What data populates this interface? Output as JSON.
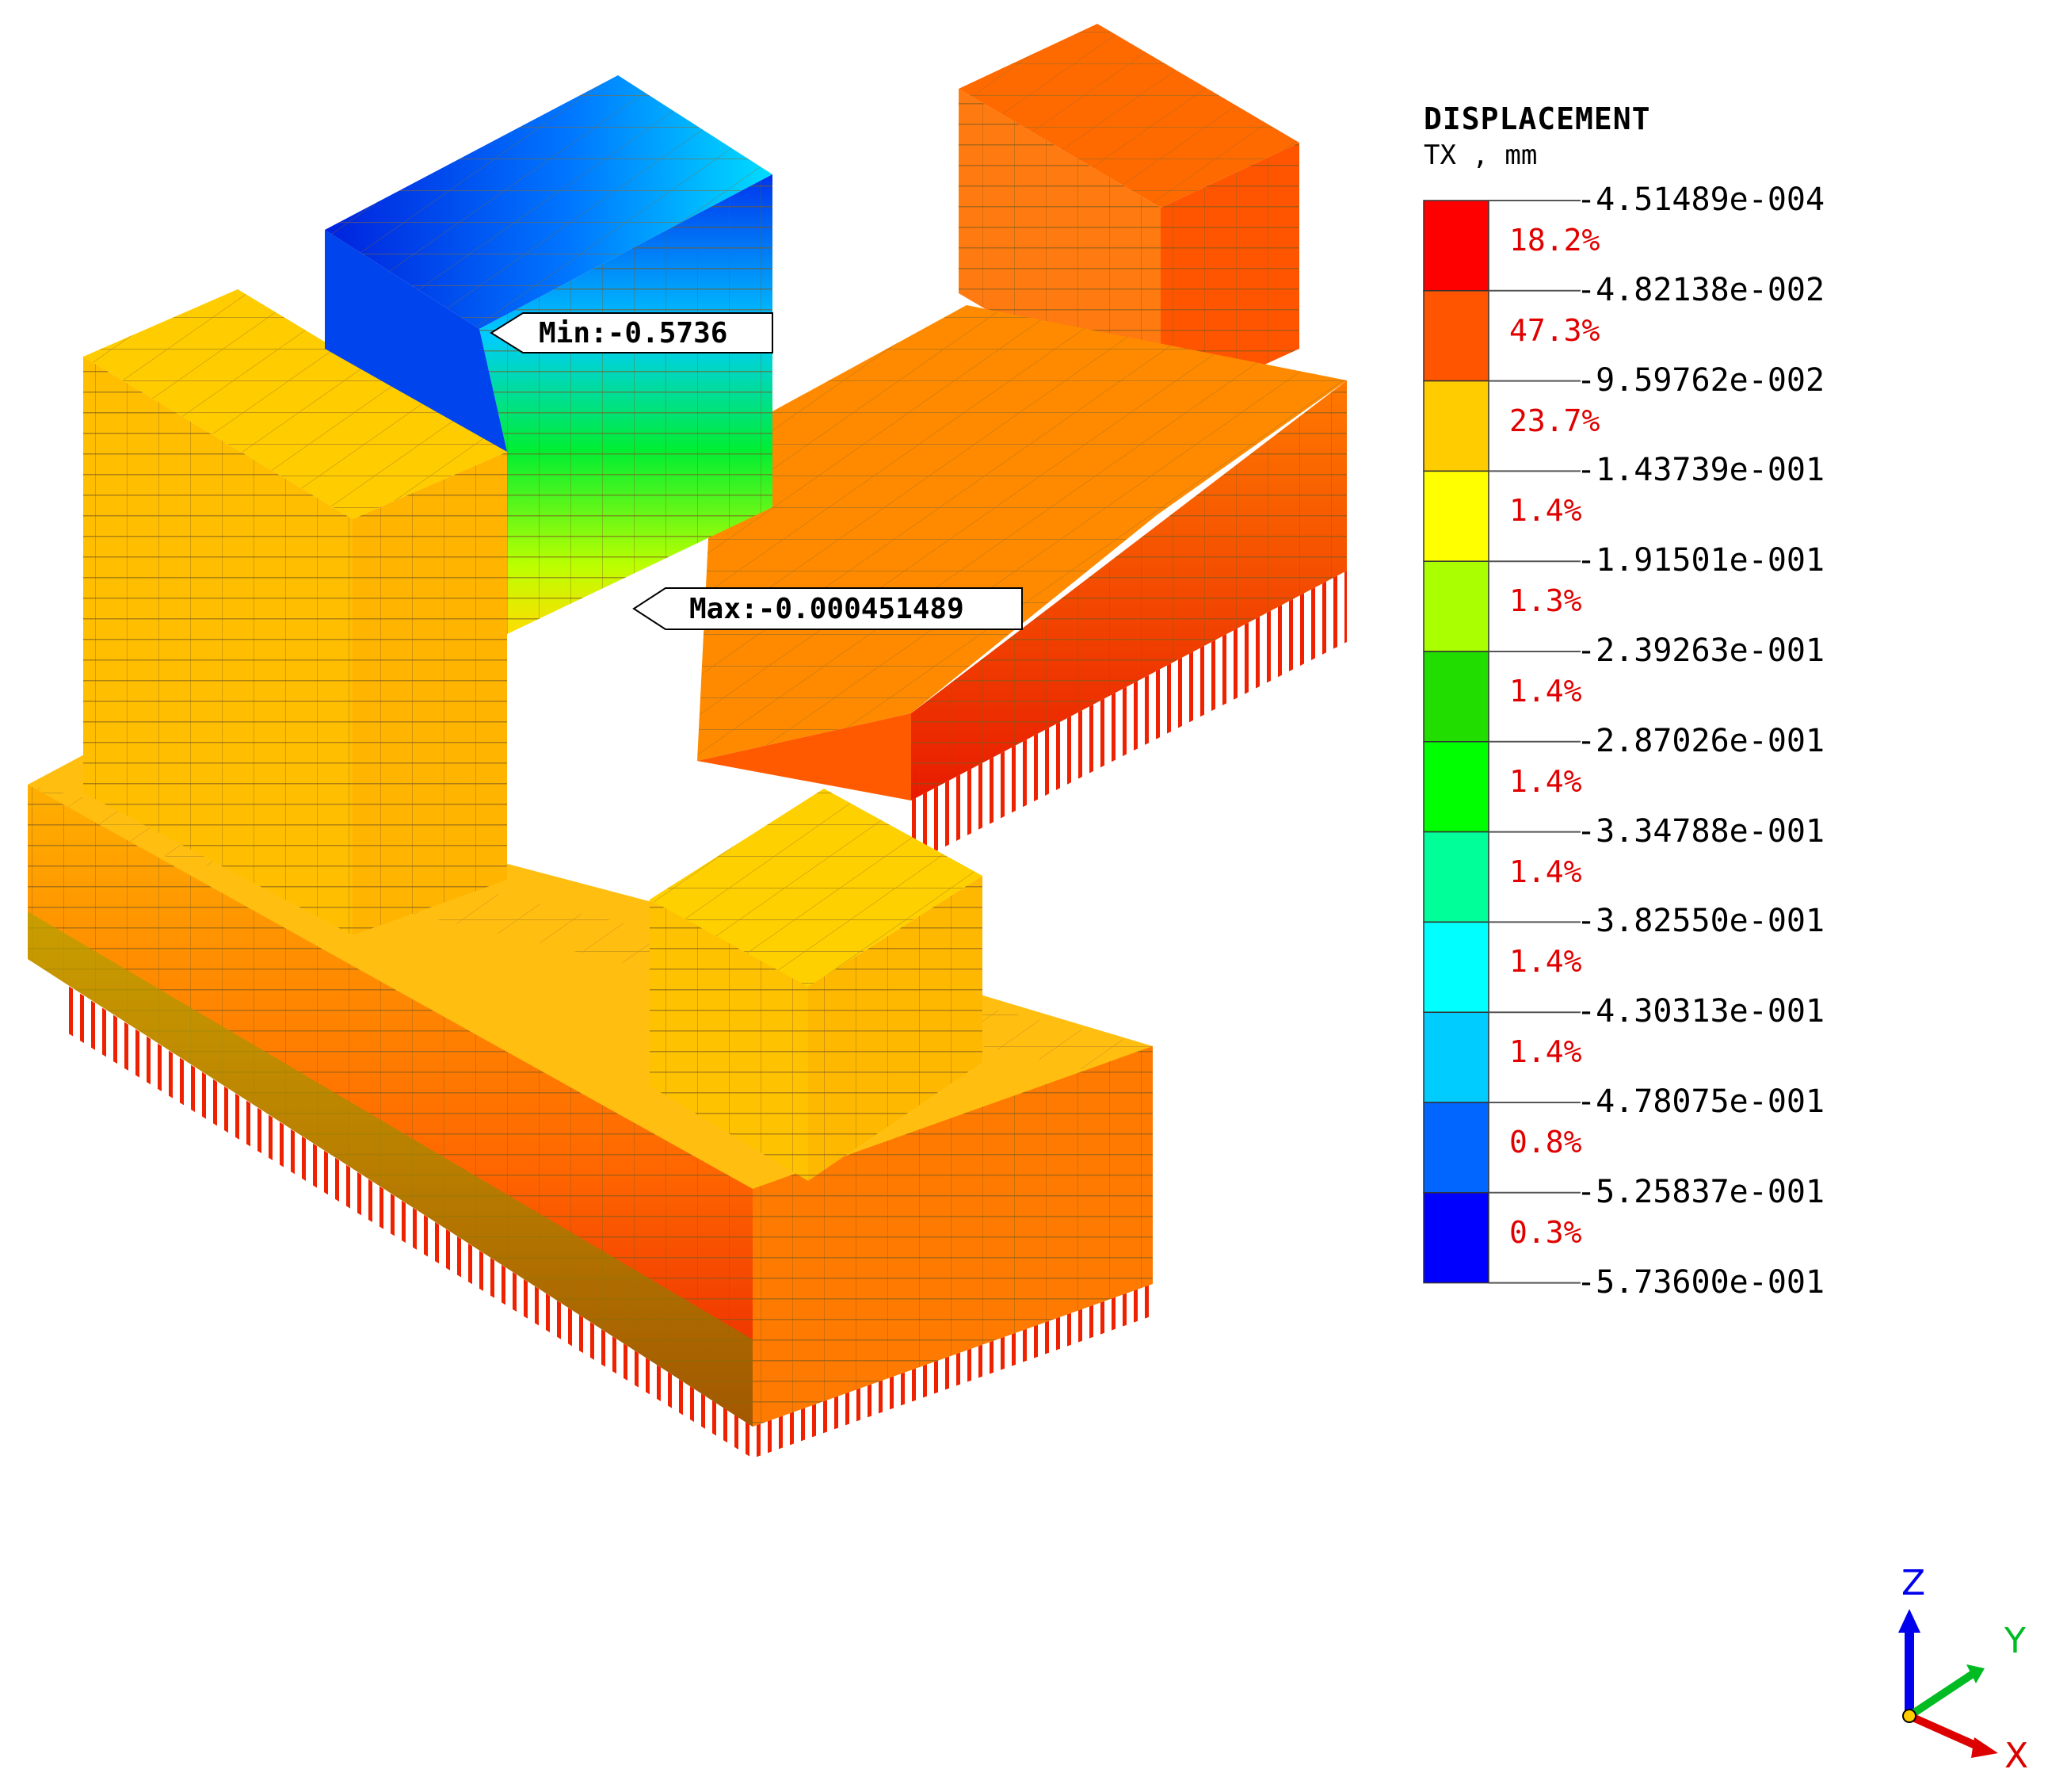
{
  "legend": {
    "title": "DISPLACEMENT",
    "subtitle": "TX , mm",
    "bands": [
      {
        "color": "#ff0000",
        "pct": "18.2%"
      },
      {
        "color": "#ff5500",
        "pct": "47.3%"
      },
      {
        "color": "#ffcc00",
        "pct": "23.7%"
      },
      {
        "color": "#ffff00",
        "pct": "1.4%"
      },
      {
        "color": "#aaff00",
        "pct": "1.3%"
      },
      {
        "color": "#22dd00",
        "pct": "1.4%"
      },
      {
        "color": "#00ff00",
        "pct": "1.4%"
      },
      {
        "color": "#00ff99",
        "pct": "1.4%"
      },
      {
        "color": "#00ffff",
        "pct": "1.4%"
      },
      {
        "color": "#00ccff",
        "pct": "1.4%"
      },
      {
        "color": "#0066ff",
        "pct": "0.8%"
      },
      {
        "color": "#0000ff",
        "pct": "0.3%"
      }
    ],
    "values": [
      "-4.51489e-004",
      "-4.82138e-002",
      "-9.59762e-002",
      "-1.43739e-001",
      "-1.91501e-001",
      "-2.39263e-001",
      "-2.87026e-001",
      "-3.34788e-001",
      "-3.82550e-001",
      "-4.30313e-001",
      "-4.78075e-001",
      "-5.25837e-001",
      "-5.73600e-001"
    ]
  },
  "callouts": {
    "min_label": "Min:-0.5736",
    "max_label": "Max:-0.000451489"
  },
  "axes": {
    "z": "Z",
    "y": "Y",
    "x": "X"
  },
  "colors": {
    "orange": "#ff6a00",
    "amber": "#ffb800",
    "yellow": "#ffd400",
    "red": "#e81b00",
    "blue": "#0033ff",
    "cyan": "#00ddff"
  }
}
